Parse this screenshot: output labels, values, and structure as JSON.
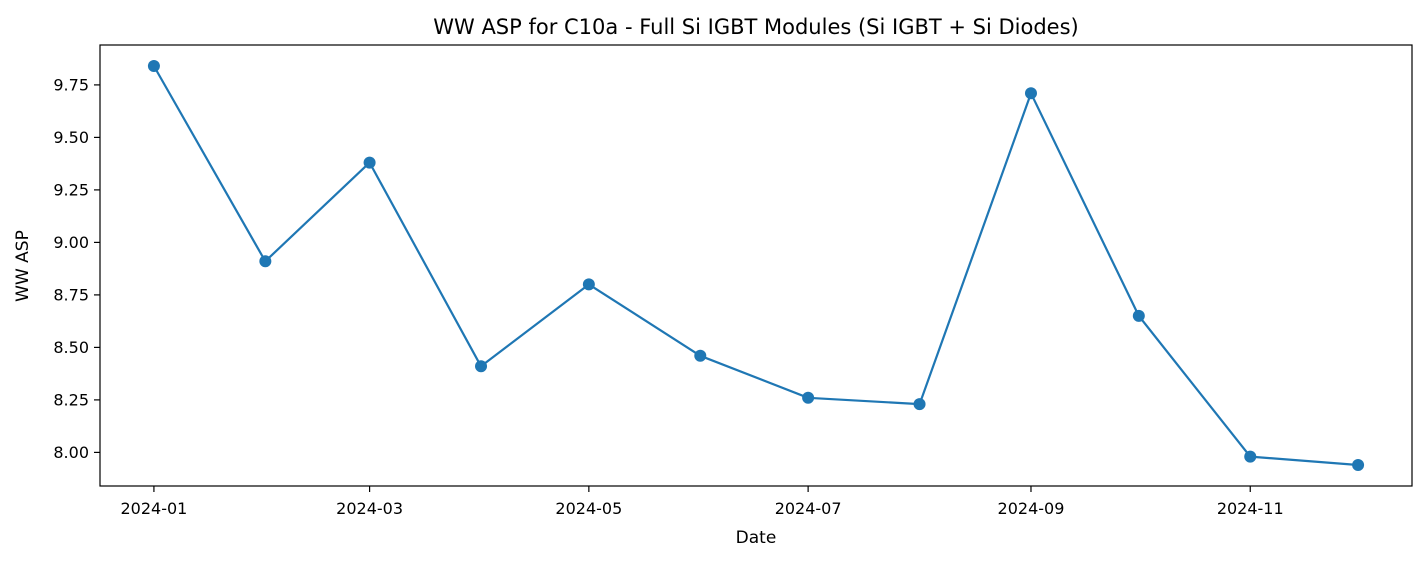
{
  "chart_data": {
    "type": "line",
    "title": "WW ASP for C10a - Full Si IGBT Modules (Si IGBT + Si Diodes)",
    "xlabel": "Date",
    "ylabel": "WW ASP",
    "x": [
      "2024-01-01",
      "2024-02-01",
      "2024-03-01",
      "2024-04-01",
      "2024-05-01",
      "2024-06-01",
      "2024-07-01",
      "2024-08-01",
      "2024-09-01",
      "2024-10-01",
      "2024-11-01",
      "2024-12-01"
    ],
    "series": [
      {
        "values": [
          9.84,
          8.91,
          9.38,
          8.41,
          8.8,
          8.46,
          8.26,
          8.23,
          9.71,
          8.65,
          7.98,
          7.94
        ],
        "color": "#1f77b4",
        "marker": "circle"
      }
    ],
    "x_ticks": [
      "2024-01",
      "2024-03",
      "2024-05",
      "2024-07",
      "2024-09",
      "2024-11"
    ],
    "y_ticks": [
      "8.00",
      "8.25",
      "8.50",
      "8.75",
      "9.00",
      "9.25",
      "9.50",
      "9.75"
    ],
    "ylim": [
      7.84,
      9.94
    ],
    "xlim": [
      "2023-12-17",
      "2024-12-16"
    ],
    "grid": false,
    "legend": "none"
  }
}
